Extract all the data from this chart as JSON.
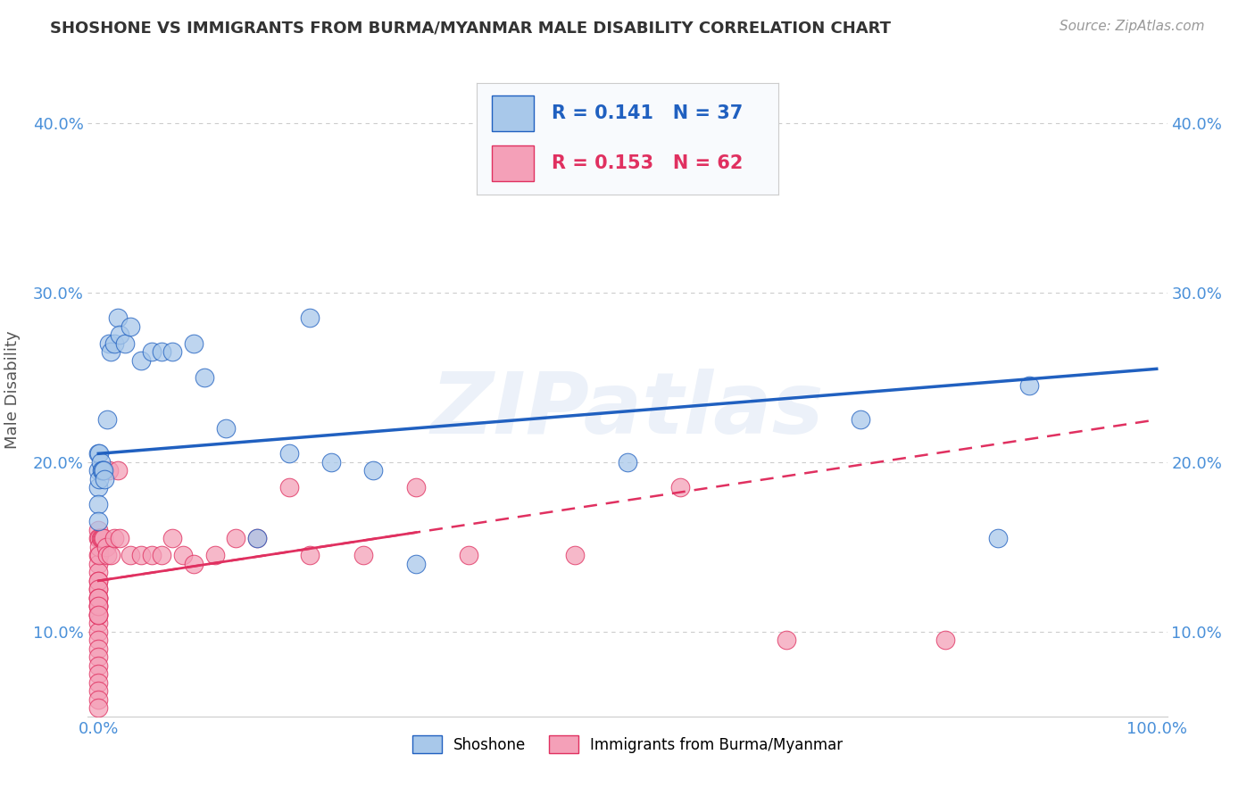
{
  "title": "SHOSHONE VS IMMIGRANTS FROM BURMA/MYANMAR MALE DISABILITY CORRELATION CHART",
  "source": "Source: ZipAtlas.com",
  "ylabel": "Male Disability",
  "xlim": [
    -0.01,
    1.01
  ],
  "ylim": [
    0.05,
    0.435
  ],
  "yticks": [
    0.1,
    0.2,
    0.3,
    0.4
  ],
  "ytick_labels": [
    "10.0%",
    "20.0%",
    "30.0%",
    "40.0%"
  ],
  "shoshone_color": "#a8c8ea",
  "immigrant_color": "#f4a0b8",
  "shoshone_line_color": "#2060c0",
  "immigrant_line_color": "#e03060",
  "R1": 0.141,
  "N1": 37,
  "R2": 0.153,
  "N2": 62,
  "shoshone_x": [
    0.0,
    0.0,
    0.0,
    0.0,
    0.0,
    0.001,
    0.001,
    0.002,
    0.003,
    0.004,
    0.005,
    0.006,
    0.008,
    0.01,
    0.012,
    0.015,
    0.018,
    0.02,
    0.025,
    0.03,
    0.04,
    0.05,
    0.06,
    0.07,
    0.09,
    0.1,
    0.12,
    0.15,
    0.18,
    0.22,
    0.26,
    0.5,
    0.72,
    0.85,
    0.88,
    0.2,
    0.3
  ],
  "shoshone_y": [
    0.205,
    0.195,
    0.185,
    0.175,
    0.165,
    0.205,
    0.19,
    0.2,
    0.195,
    0.195,
    0.195,
    0.19,
    0.225,
    0.27,
    0.265,
    0.27,
    0.285,
    0.275,
    0.27,
    0.28,
    0.26,
    0.265,
    0.265,
    0.265,
    0.27,
    0.25,
    0.22,
    0.155,
    0.205,
    0.2,
    0.195,
    0.2,
    0.225,
    0.155,
    0.245,
    0.285,
    0.14
  ],
  "immigrant_x": [
    0.0,
    0.0,
    0.0,
    0.0,
    0.0,
    0.0,
    0.0,
    0.0,
    0.0,
    0.0,
    0.0,
    0.0,
    0.0,
    0.0,
    0.0,
    0.0,
    0.0,
    0.0,
    0.0,
    0.0,
    0.0,
    0.0,
    0.0,
    0.0,
    0.0,
    0.0,
    0.0,
    0.0,
    0.0,
    0.001,
    0.001,
    0.001,
    0.002,
    0.003,
    0.004,
    0.005,
    0.007,
    0.008,
    0.01,
    0.012,
    0.015,
    0.018,
    0.02,
    0.03,
    0.04,
    0.05,
    0.06,
    0.07,
    0.08,
    0.09,
    0.11,
    0.13,
    0.15,
    0.18,
    0.2,
    0.25,
    0.3,
    0.35,
    0.45,
    0.55,
    0.65,
    0.8
  ],
  "immigrant_y": [
    0.145,
    0.14,
    0.135,
    0.13,
    0.125,
    0.12,
    0.115,
    0.11,
    0.105,
    0.1,
    0.095,
    0.09,
    0.085,
    0.08,
    0.075,
    0.07,
    0.065,
    0.06,
    0.055,
    0.13,
    0.125,
    0.12,
    0.115,
    0.11,
    0.12,
    0.115,
    0.11,
    0.16,
    0.155,
    0.155,
    0.15,
    0.145,
    0.155,
    0.155,
    0.155,
    0.155,
    0.15,
    0.145,
    0.195,
    0.145,
    0.155,
    0.195,
    0.155,
    0.145,
    0.145,
    0.145,
    0.145,
    0.155,
    0.145,
    0.14,
    0.145,
    0.155,
    0.155,
    0.185,
    0.145,
    0.145,
    0.185,
    0.145,
    0.145,
    0.185,
    0.095,
    0.095
  ],
  "watermark": "ZIPatlas",
  "background_color": "#ffffff",
  "grid_color": "#cccccc",
  "tick_label_color": "#4a90d9"
}
